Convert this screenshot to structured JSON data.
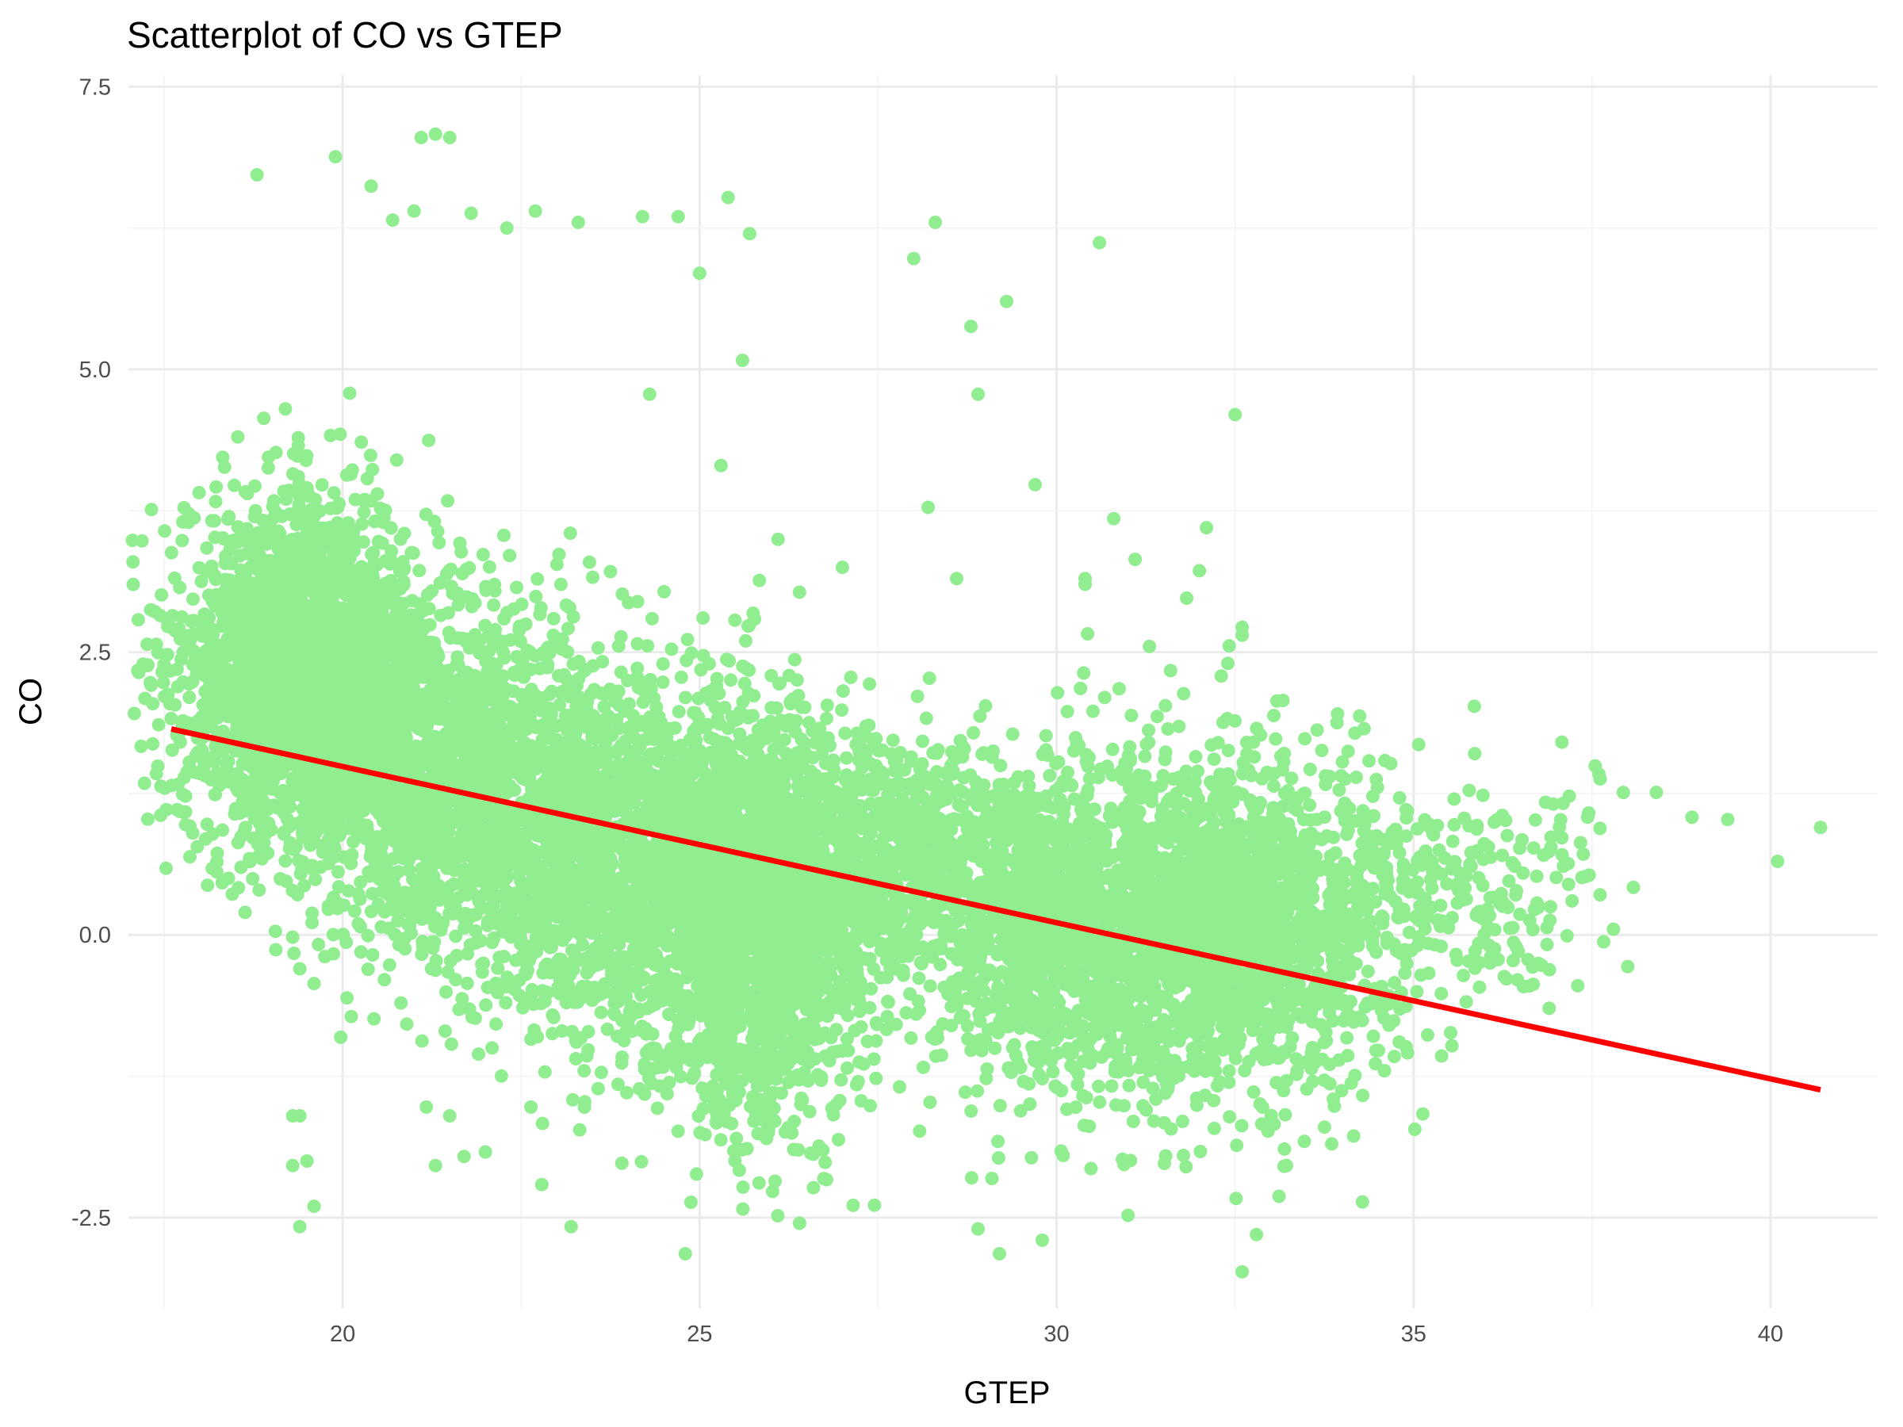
{
  "chart_data": {
    "type": "scatter",
    "title": "Scatterplot of CO vs GTEP",
    "xlabel": "GTEP",
    "ylabel": "CO",
    "xlim": [
      17.0,
      41.5
    ],
    "ylim": [
      -3.3,
      7.6
    ],
    "xticks": [
      20,
      25,
      30,
      35,
      40
    ],
    "yticks": [
      -2.5,
      0.0,
      2.5,
      5.0,
      7.5
    ],
    "xtick_labels": [
      "20",
      "25",
      "30",
      "35",
      "40"
    ],
    "ytick_labels": [
      "-2.5",
      "0.0",
      "2.5",
      "5.0",
      "7.5"
    ],
    "grid": true,
    "point_color": "#90ee90",
    "fit_line": {
      "color": "#ff0000",
      "x": [
        17.6,
        40.7
      ],
      "y": [
        1.82,
        -1.37
      ]
    },
    "clusters": [
      {
        "x_center": 19.5,
        "y_center": 2.3,
        "x_spread": 0.9,
        "y_spread": 0.75,
        "count": 2600
      },
      {
        "x_center": 21.8,
        "y_center": 1.3,
        "x_spread": 1.1,
        "y_spread": 0.75,
        "count": 1700
      },
      {
        "x_center": 24.3,
        "y_center": 0.5,
        "x_spread": 1.2,
        "y_spread": 0.85,
        "count": 1700
      },
      {
        "x_center": 25.9,
        "y_center": 0.1,
        "x_spread": 0.7,
        "y_spread": 0.9,
        "count": 1400
      },
      {
        "x_center": 27.8,
        "y_center": 0.6,
        "x_spread": 1.1,
        "y_spread": 0.6,
        "count": 900
      },
      {
        "x_center": 30.2,
        "y_center": 0.05,
        "x_spread": 1.0,
        "y_spread": 0.75,
        "count": 1300
      },
      {
        "x_center": 32.5,
        "y_center": 0.05,
        "x_spread": 1.0,
        "y_spread": 0.75,
        "count": 1600
      },
      {
        "x_center": 35.0,
        "y_center": 0.3,
        "x_spread": 0.8,
        "y_spread": 0.55,
        "count": 260
      },
      {
        "x_center": 36.8,
        "y_center": 0.5,
        "x_spread": 0.6,
        "y_spread": 0.5,
        "count": 70
      }
    ],
    "notable_points": [
      [
        21.1,
        7.05
      ],
      [
        21.3,
        7.08
      ],
      [
        21.5,
        7.05
      ],
      [
        19.9,
        6.88
      ],
      [
        18.8,
        6.72
      ],
      [
        20.4,
        6.62
      ],
      [
        25.4,
        6.52
      ],
      [
        22.7,
        6.4
      ],
      [
        20.7,
        6.32
      ],
      [
        21.0,
        6.4
      ],
      [
        21.8,
        6.38
      ],
      [
        23.3,
        6.3
      ],
      [
        24.2,
        6.35
      ],
      [
        24.7,
        6.35
      ],
      [
        28.3,
        6.3
      ],
      [
        30.6,
        6.12
      ],
      [
        25.7,
        6.2
      ],
      [
        22.3,
        6.25
      ],
      [
        28.0,
        5.98
      ],
      [
        25.0,
        5.85
      ],
      [
        29.3,
        5.6
      ],
      [
        28.8,
        5.38
      ],
      [
        25.6,
        5.08
      ],
      [
        28.9,
        4.78
      ],
      [
        24.3,
        4.78
      ],
      [
        32.5,
        4.6
      ],
      [
        25.3,
        4.15
      ],
      [
        29.7,
        3.98
      ],
      [
        30.8,
        3.68
      ],
      [
        32.1,
        3.6
      ],
      [
        31.1,
        3.32
      ],
      [
        28.2,
        3.78
      ],
      [
        27.0,
        3.25
      ],
      [
        28.6,
        3.15
      ],
      [
        30.4,
        3.15
      ],
      [
        30.4,
        3.1
      ],
      [
        32.0,
        3.22
      ],
      [
        32.6,
        2.72
      ],
      [
        32.6,
        2.65
      ],
      [
        31.3,
        2.55
      ],
      [
        32.4,
        2.4
      ],
      [
        40.7,
        0.95
      ],
      [
        40.1,
        0.65
      ],
      [
        39.4,
        1.02
      ],
      [
        38.9,
        1.04
      ],
      [
        38.4,
        1.26
      ],
      [
        37.8,
        0.05
      ],
      [
        38.0,
        -0.28
      ],
      [
        36.9,
        -0.65
      ],
      [
        37.3,
        -0.45
      ],
      [
        32.6,
        -2.98
      ],
      [
        32.8,
        -2.65
      ],
      [
        29.2,
        -2.82
      ],
      [
        24.8,
        -2.82
      ],
      [
        29.8,
        -2.7
      ],
      [
        31.0,
        -2.48
      ],
      [
        28.9,
        -2.6
      ],
      [
        26.4,
        -2.55
      ],
      [
        23.2,
        -2.58
      ],
      [
        19.4,
        -2.58
      ],
      [
        19.6,
        -2.4
      ],
      [
        19.5,
        -2.0
      ],
      [
        19.3,
        -2.04
      ],
      [
        19.3,
        -1.6
      ],
      [
        19.4,
        -1.6
      ],
      [
        21.3,
        -2.04
      ],
      [
        21.7,
        -1.96
      ],
      [
        22.0,
        -1.92
      ],
      [
        21.5,
        -1.6
      ],
      [
        17.9,
        0.9
      ],
      [
        18.4,
        0.5
      ],
      [
        19.6,
        -0.43
      ],
      [
        19.4,
        -0.3
      ],
      [
        19.3,
        -0.02
      ]
    ]
  }
}
